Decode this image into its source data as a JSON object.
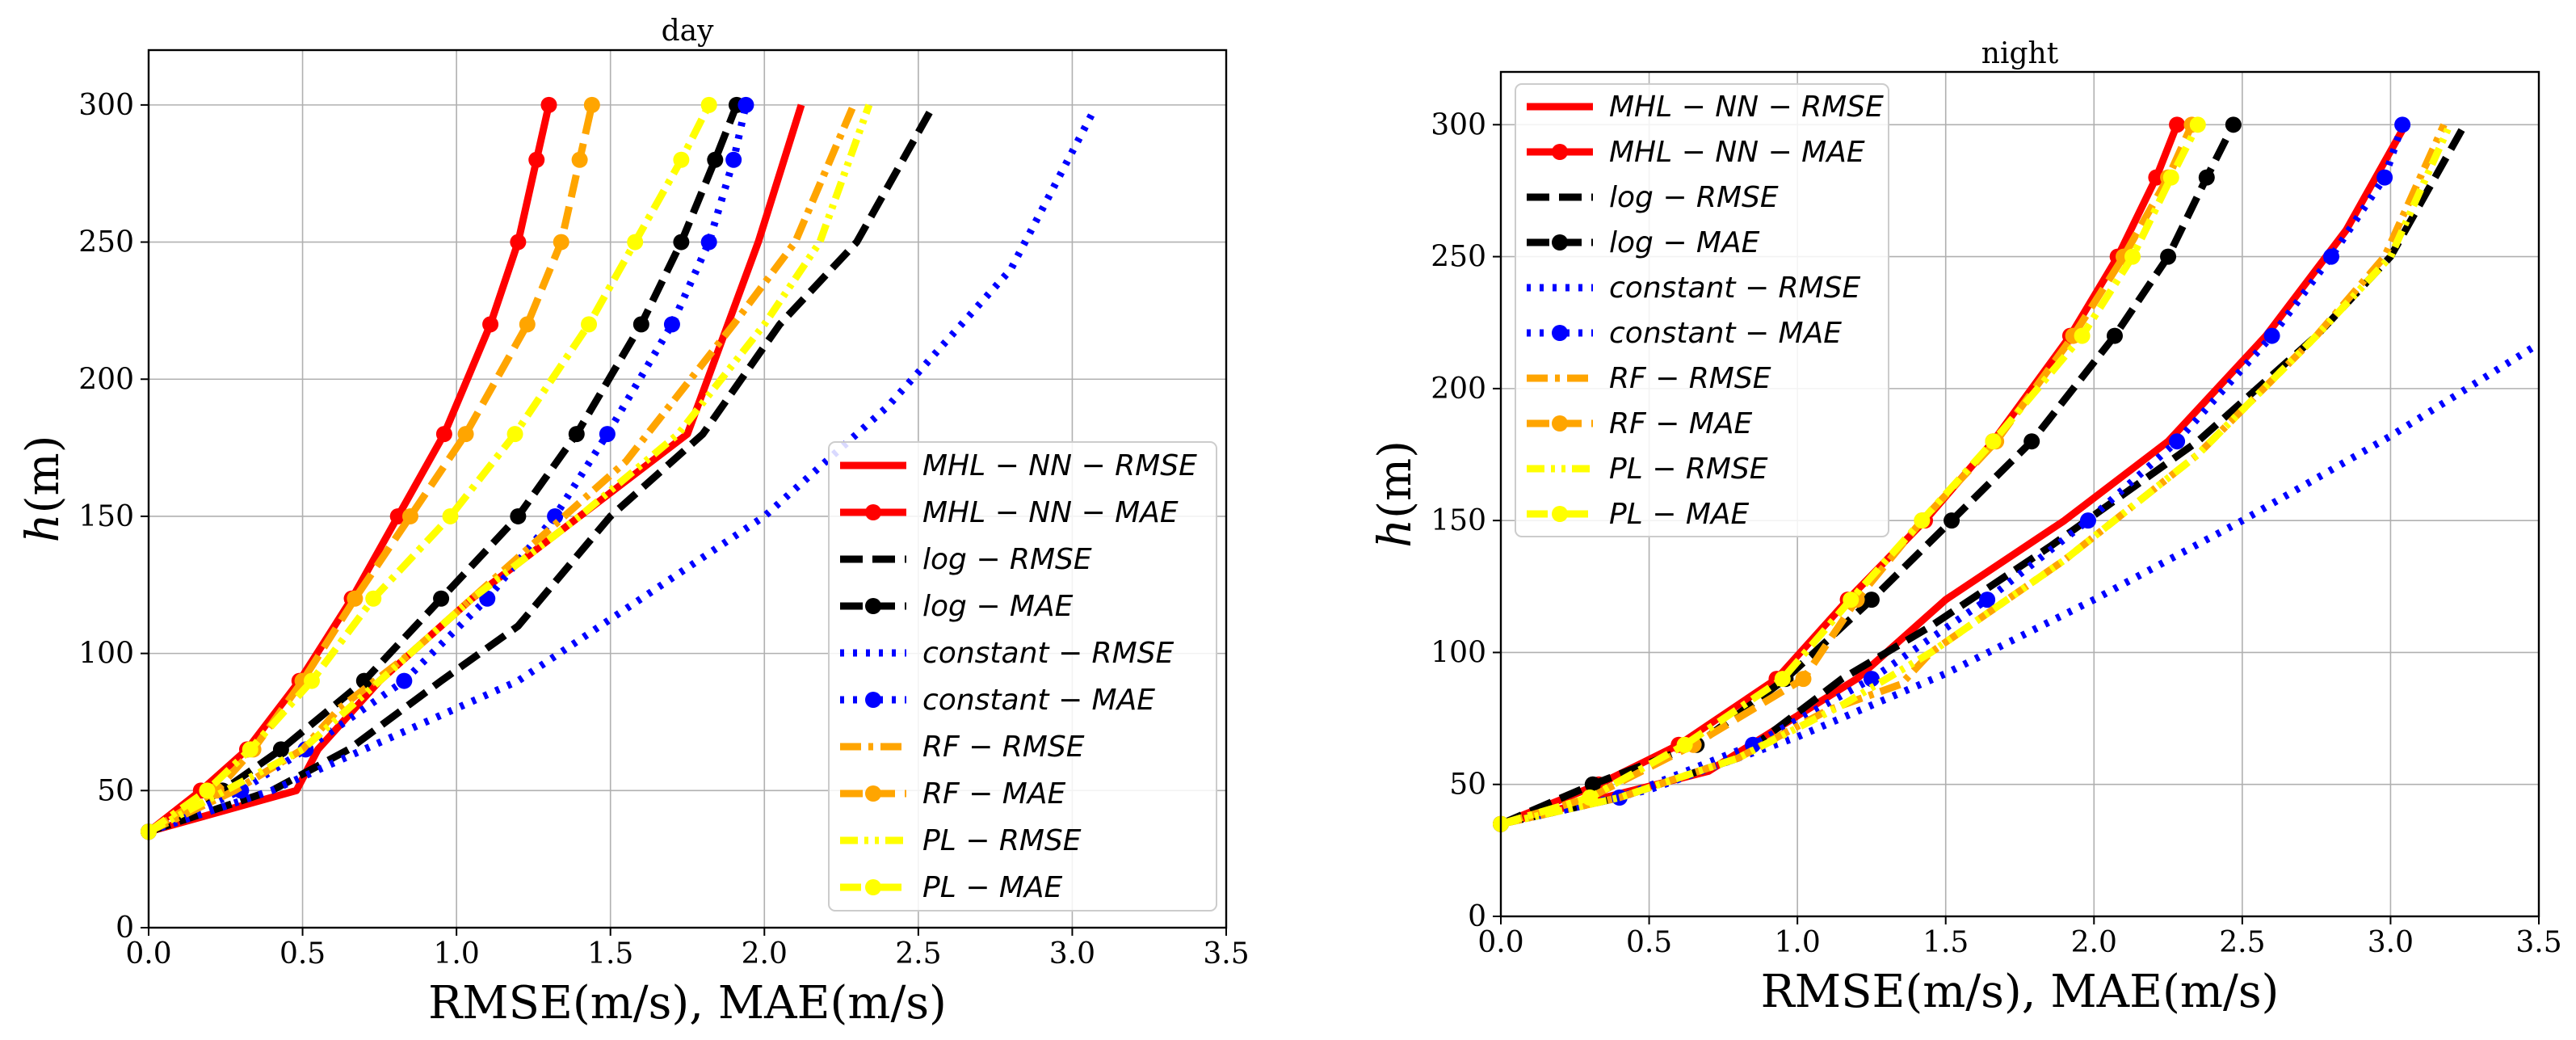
{
  "chart_data": [
    {
      "type": "line",
      "title": "day",
      "xlabel": "RMSE(m/s), MAE(m/s)",
      "ylabel_main": "h",
      "ylabel_unit": "(m)",
      "xlim": [
        0,
        3.5
      ],
      "ylim": [
        0,
        320
      ],
      "xticks": [
        "0.0",
        "0.5",
        "1.0",
        "1.5",
        "2.0",
        "2.5",
        "3.0",
        "3.5"
      ],
      "yticks": [
        "0",
        "50",
        "100",
        "150",
        "200",
        "250",
        "300"
      ],
      "grid": true,
      "legend_position": "lower-right",
      "series": [
        {
          "name": "MHL − NN − RMSE",
          "color": "#ff0000",
          "style": "solid",
          "marker": false,
          "x": [
            0.0,
            0.48,
            0.55,
            0.75,
            1.05,
            1.4,
            1.75,
            1.98,
            2.12
          ],
          "y": [
            35,
            50,
            65,
            90,
            120,
            150,
            180,
            250,
            300
          ]
        },
        {
          "name": "MHL − NN − MAE",
          "color": "#ff0000",
          "style": "solid",
          "marker": true,
          "x": [
            0.0,
            0.17,
            0.32,
            0.49,
            0.66,
            0.81,
            0.96,
            1.11,
            1.2,
            1.26,
            1.3
          ],
          "y": [
            35,
            50,
            65,
            90,
            120,
            150,
            180,
            220,
            250,
            280,
            300
          ]
        },
        {
          "name": "log − RMSE",
          "color": "#000000",
          "style": "dashed",
          "marker": false,
          "x": [
            0.0,
            0.4,
            0.65,
            0.95,
            1.2,
            1.5,
            1.8,
            2.05,
            2.3,
            2.55
          ],
          "y": [
            35,
            50,
            65,
            90,
            110,
            150,
            180,
            220,
            250,
            300
          ]
        },
        {
          "name": "log − MAE",
          "color": "#000000",
          "style": "dashed",
          "marker": true,
          "x": [
            0.0,
            0.24,
            0.43,
            0.7,
            0.95,
            1.2,
            1.39,
            1.6,
            1.73,
            1.84,
            1.91
          ],
          "y": [
            35,
            50,
            65,
            90,
            120,
            150,
            180,
            220,
            250,
            280,
            300
          ]
        },
        {
          "name": "constant − RMSE",
          "color": "#0000ff",
          "style": "dotted",
          "marker": false,
          "x": [
            0.0,
            0.4,
            0.8,
            1.2,
            1.6,
            2.0,
            2.4,
            2.8,
            3.07
          ],
          "y": [
            35,
            50,
            70,
            90,
            120,
            150,
            190,
            240,
            298
          ]
        },
        {
          "name": "constant − MAE",
          "color": "#0000ff",
          "style": "dotted",
          "marker": true,
          "x": [
            0.0,
            0.3,
            0.51,
            0.83,
            1.1,
            1.32,
            1.49,
            1.7,
            1.82,
            1.9,
            1.94
          ],
          "y": [
            35,
            50,
            65,
            90,
            120,
            150,
            180,
            220,
            250,
            280,
            300
          ]
        },
        {
          "name": "RF − RMSE",
          "color": "#ffa500",
          "style": "dashdot",
          "marker": false,
          "x": [
            0.0,
            0.28,
            0.5,
            0.62,
            0.85,
            1.15,
            1.55,
            1.9,
            2.1,
            2.29
          ],
          "y": [
            35,
            50,
            65,
            80,
            100,
            130,
            170,
            220,
            250,
            300
          ]
        },
        {
          "name": "RF − MAE",
          "color": "#ffa500",
          "style": "dashed",
          "marker": true,
          "x": [
            0.0,
            0.22,
            0.34,
            0.5,
            0.67,
            0.85,
            1.03,
            1.23,
            1.34,
            1.4,
            1.44
          ],
          "y": [
            35,
            50,
            65,
            90,
            120,
            150,
            180,
            220,
            250,
            280,
            300
          ]
        },
        {
          "name": "PL − RMSE",
          "color": "#ffff00",
          "style": "dashdotdot",
          "marker": false,
          "x": [
            0.0,
            0.25,
            0.5,
            0.75,
            1.05,
            1.4,
            1.72,
            2.0,
            2.18,
            2.34
          ],
          "y": [
            35,
            50,
            65,
            90,
            120,
            150,
            180,
            220,
            250,
            300
          ]
        },
        {
          "name": "PL − MAE",
          "color": "#ffff00",
          "style": "dashdot",
          "marker": true,
          "x": [
            0.0,
            0.19,
            0.33,
            0.53,
            0.73,
            0.98,
            1.19,
            1.43,
            1.58,
            1.73,
            1.82
          ],
          "y": [
            35,
            50,
            65,
            90,
            120,
            150,
            180,
            220,
            250,
            280,
            300
          ]
        }
      ]
    },
    {
      "type": "line",
      "title": "night",
      "xlabel": "RMSE(m/s), MAE(m/s)",
      "ylabel_main": "h",
      "ylabel_unit": "(m)",
      "xlim": [
        0,
        3.5
      ],
      "ylim": [
        0,
        320
      ],
      "xticks": [
        "0.0",
        "0.5",
        "1.0",
        "1.5",
        "2.0",
        "2.5",
        "3.0",
        "3.5"
      ],
      "yticks": [
        "0",
        "50",
        "100",
        "150",
        "200",
        "250",
        "300"
      ],
      "grid": true,
      "legend_position": "upper-left",
      "series": [
        {
          "name": "MHL − NN − RMSE",
          "color": "#ff0000",
          "style": "solid",
          "marker": false,
          "x": [
            0.0,
            0.35,
            0.7,
            1.2,
            1.5,
            1.9,
            2.25,
            2.58,
            2.85,
            3.05
          ],
          "y": [
            35,
            45,
            55,
            90,
            120,
            150,
            180,
            220,
            260,
            300
          ]
        },
        {
          "name": "MHL − NN − MAE",
          "color": "#ff0000",
          "style": "solid",
          "marker": true,
          "x": [
            0.0,
            0.33,
            0.6,
            0.93,
            1.17,
            1.43,
            1.66,
            1.92,
            2.08,
            2.21,
            2.28
          ],
          "y": [
            35,
            50,
            65,
            90,
            120,
            150,
            180,
            220,
            250,
            280,
            300
          ]
        },
        {
          "name": "log − RMSE",
          "color": "#000000",
          "style": "dashed",
          "marker": false,
          "x": [
            0.0,
            0.4,
            0.8,
            1.15,
            1.45,
            1.85,
            2.35,
            2.75,
            3.0,
            3.24
          ],
          "y": [
            35,
            45,
            60,
            90,
            110,
            140,
            180,
            220,
            250,
            298
          ]
        },
        {
          "name": "log − MAE",
          "color": "#000000",
          "style": "dashed",
          "marker": true,
          "x": [
            0.0,
            0.31,
            0.66,
            0.96,
            1.25,
            1.52,
            1.79,
            2.07,
            2.25,
            2.38,
            2.47
          ],
          "y": [
            35,
            50,
            65,
            90,
            120,
            150,
            180,
            220,
            250,
            280,
            300
          ]
        },
        {
          "name": "constant − RMSE",
          "color": "#0000ff",
          "style": "dotted",
          "marker": false,
          "x": [
            0.0,
            0.5,
            1.0,
            1.5,
            2.0,
            2.5,
            3.0,
            3.5
          ],
          "y": [
            35,
            48,
            68,
            92,
            120,
            150,
            182,
            217
          ]
        },
        {
          "name": "constant − MAE",
          "color": "#0000ff",
          "style": "dotted",
          "marker": true,
          "x": [
            0.0,
            0.4,
            0.85,
            1.25,
            1.64,
            1.98,
            2.28,
            2.6,
            2.8,
            2.98,
            3.04
          ],
          "y": [
            35,
            45,
            65,
            90,
            120,
            150,
            180,
            220,
            250,
            280,
            300
          ]
        },
        {
          "name": "RF − RMSE",
          "color": "#ffa500",
          "style": "dashdot",
          "marker": false,
          "x": [
            0.0,
            0.4,
            0.8,
            1.1,
            1.35,
            1.45,
            1.9,
            2.35,
            2.75,
            2.98,
            3.18
          ],
          "y": [
            35,
            45,
            60,
            78,
            88,
            100,
            135,
            175,
            220,
            250,
            300
          ]
        },
        {
          "name": "RF − MAE",
          "color": "#ffa500",
          "style": "dashed",
          "marker": true,
          "x": [
            0.0,
            0.3,
            0.65,
            1.02,
            1.2,
            1.42,
            1.67,
            1.93,
            2.1,
            2.25,
            2.33
          ],
          "y": [
            35,
            45,
            65,
            90,
            120,
            150,
            180,
            220,
            250,
            280,
            300
          ]
        },
        {
          "name": "PL − RMSE",
          "color": "#ffff00",
          "style": "dashdotdot",
          "marker": false,
          "x": [
            0.0,
            0.4,
            0.8,
            1.15,
            1.45,
            1.9,
            2.35,
            2.75,
            3.0,
            3.2
          ],
          "y": [
            35,
            45,
            60,
            80,
            100,
            135,
            175,
            220,
            250,
            300
          ]
        },
        {
          "name": "PL − MAE",
          "color": "#ffff00",
          "style": "dashdot",
          "marker": true,
          "x": [
            0.0,
            0.3,
            0.62,
            0.95,
            1.18,
            1.42,
            1.66,
            1.96,
            2.13,
            2.26,
            2.35
          ],
          "y": [
            35,
            45,
            65,
            90,
            120,
            150,
            180,
            220,
            250,
            280,
            300
          ]
        }
      ]
    }
  ]
}
